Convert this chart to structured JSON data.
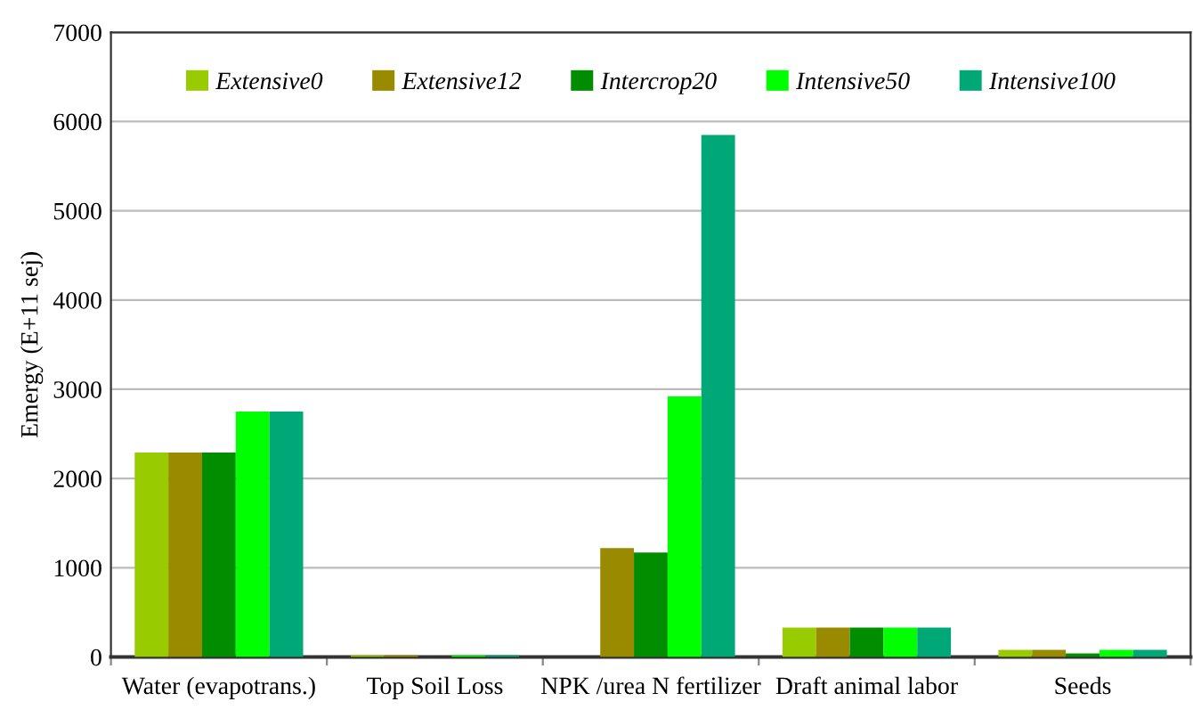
{
  "chart_data": {
    "type": "bar",
    "ylabel": "Emergy (E+11 sej)",
    "categories": [
      "Water (evapotrans.)",
      "Top Soil Loss",
      "NPK /urea N fertilizer",
      "Draft animal labor",
      "Seeds"
    ],
    "series": [
      {
        "name": "Extensive0",
        "color": "#99cc00",
        "values": [
          2290,
          20,
          0,
          330,
          80
        ]
      },
      {
        "name": "Extensive12",
        "color": "#998a00",
        "values": [
          2290,
          20,
          1220,
          330,
          80
        ]
      },
      {
        "name": "Intercrop20",
        "color": "#008e00",
        "values": [
          2290,
          null,
          1170,
          330,
          40
        ]
      },
      {
        "name": "Intensive50",
        "color": "#00ff00",
        "values": [
          2750,
          20,
          2920,
          330,
          80
        ]
      },
      {
        "name": "Intensive100",
        "color": "#00a878",
        "values": [
          2750,
          20,
          5850,
          330,
          80
        ]
      }
    ],
    "ylim": [
      0,
      7000
    ],
    "yticks": [
      0,
      1000,
      2000,
      3000,
      4000,
      5000,
      6000,
      7000
    ],
    "grid": "y",
    "legend": "top"
  }
}
